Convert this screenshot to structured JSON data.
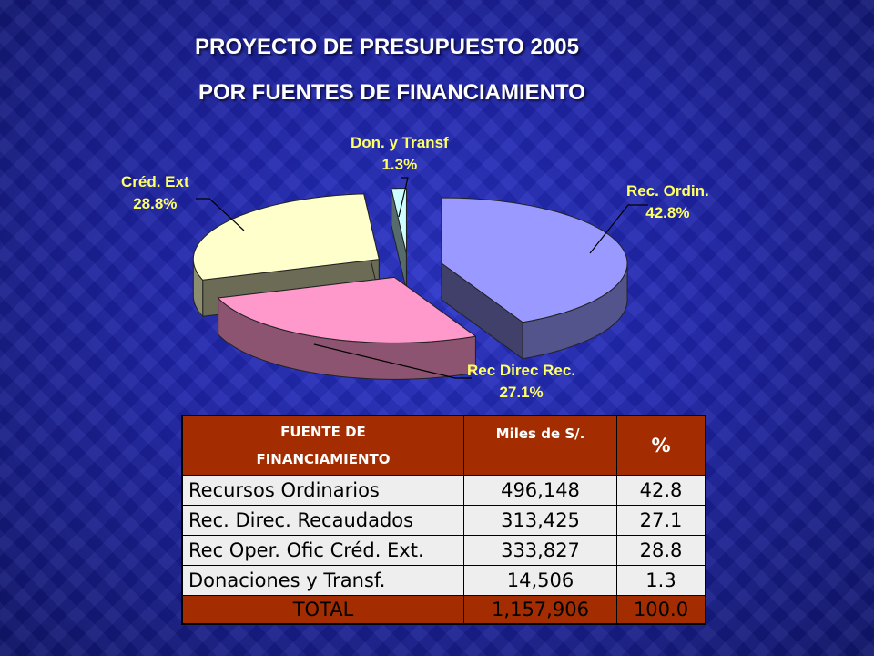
{
  "title": "PROYECTO DE PRESUPUESTO 2005",
  "subtitle": "POR FUENTES DE FINANCIAMIENTO",
  "chart_data": {
    "type": "pie",
    "slices": [
      {
        "label": "Rec. Ordin.",
        "pct_label": "42.8%",
        "value": 42.8,
        "color": "#9999ff"
      },
      {
        "label": "Rec Direc Rec.",
        "pct_label": "27.1%",
        "value": 27.1,
        "color": "#ff99cc"
      },
      {
        "label": "Créd. Ext",
        "pct_label": "28.8%",
        "value": 28.8,
        "color": "#ffffcc"
      },
      {
        "label": "Don. y Transf",
        "pct_label": "1.3%",
        "value": 1.3,
        "color": "#ccffff"
      }
    ]
  },
  "table": {
    "headers": {
      "col1_line1": "FUENTE DE",
      "col1_line2": "FINANCIAMIENTO",
      "col2": "Miles de S/.",
      "col3": "%"
    },
    "rows": [
      {
        "name": "Recursos Ordinarios",
        "amount": "496,148",
        "pct": "42.8"
      },
      {
        "name": "Rec. Direc. Recaudados",
        "amount": "313,425",
        "pct": "27.1"
      },
      {
        "name": "Rec Oper. Ofic Créd. Ext.",
        "amount": "333,827",
        "pct": "28.8"
      },
      {
        "name": "Donaciones y Transf.",
        "amount": "14,506",
        "pct": "1.3"
      }
    ],
    "total": {
      "name": "TOTAL",
      "amount": "1,157,906",
      "pct": "100.0"
    }
  }
}
